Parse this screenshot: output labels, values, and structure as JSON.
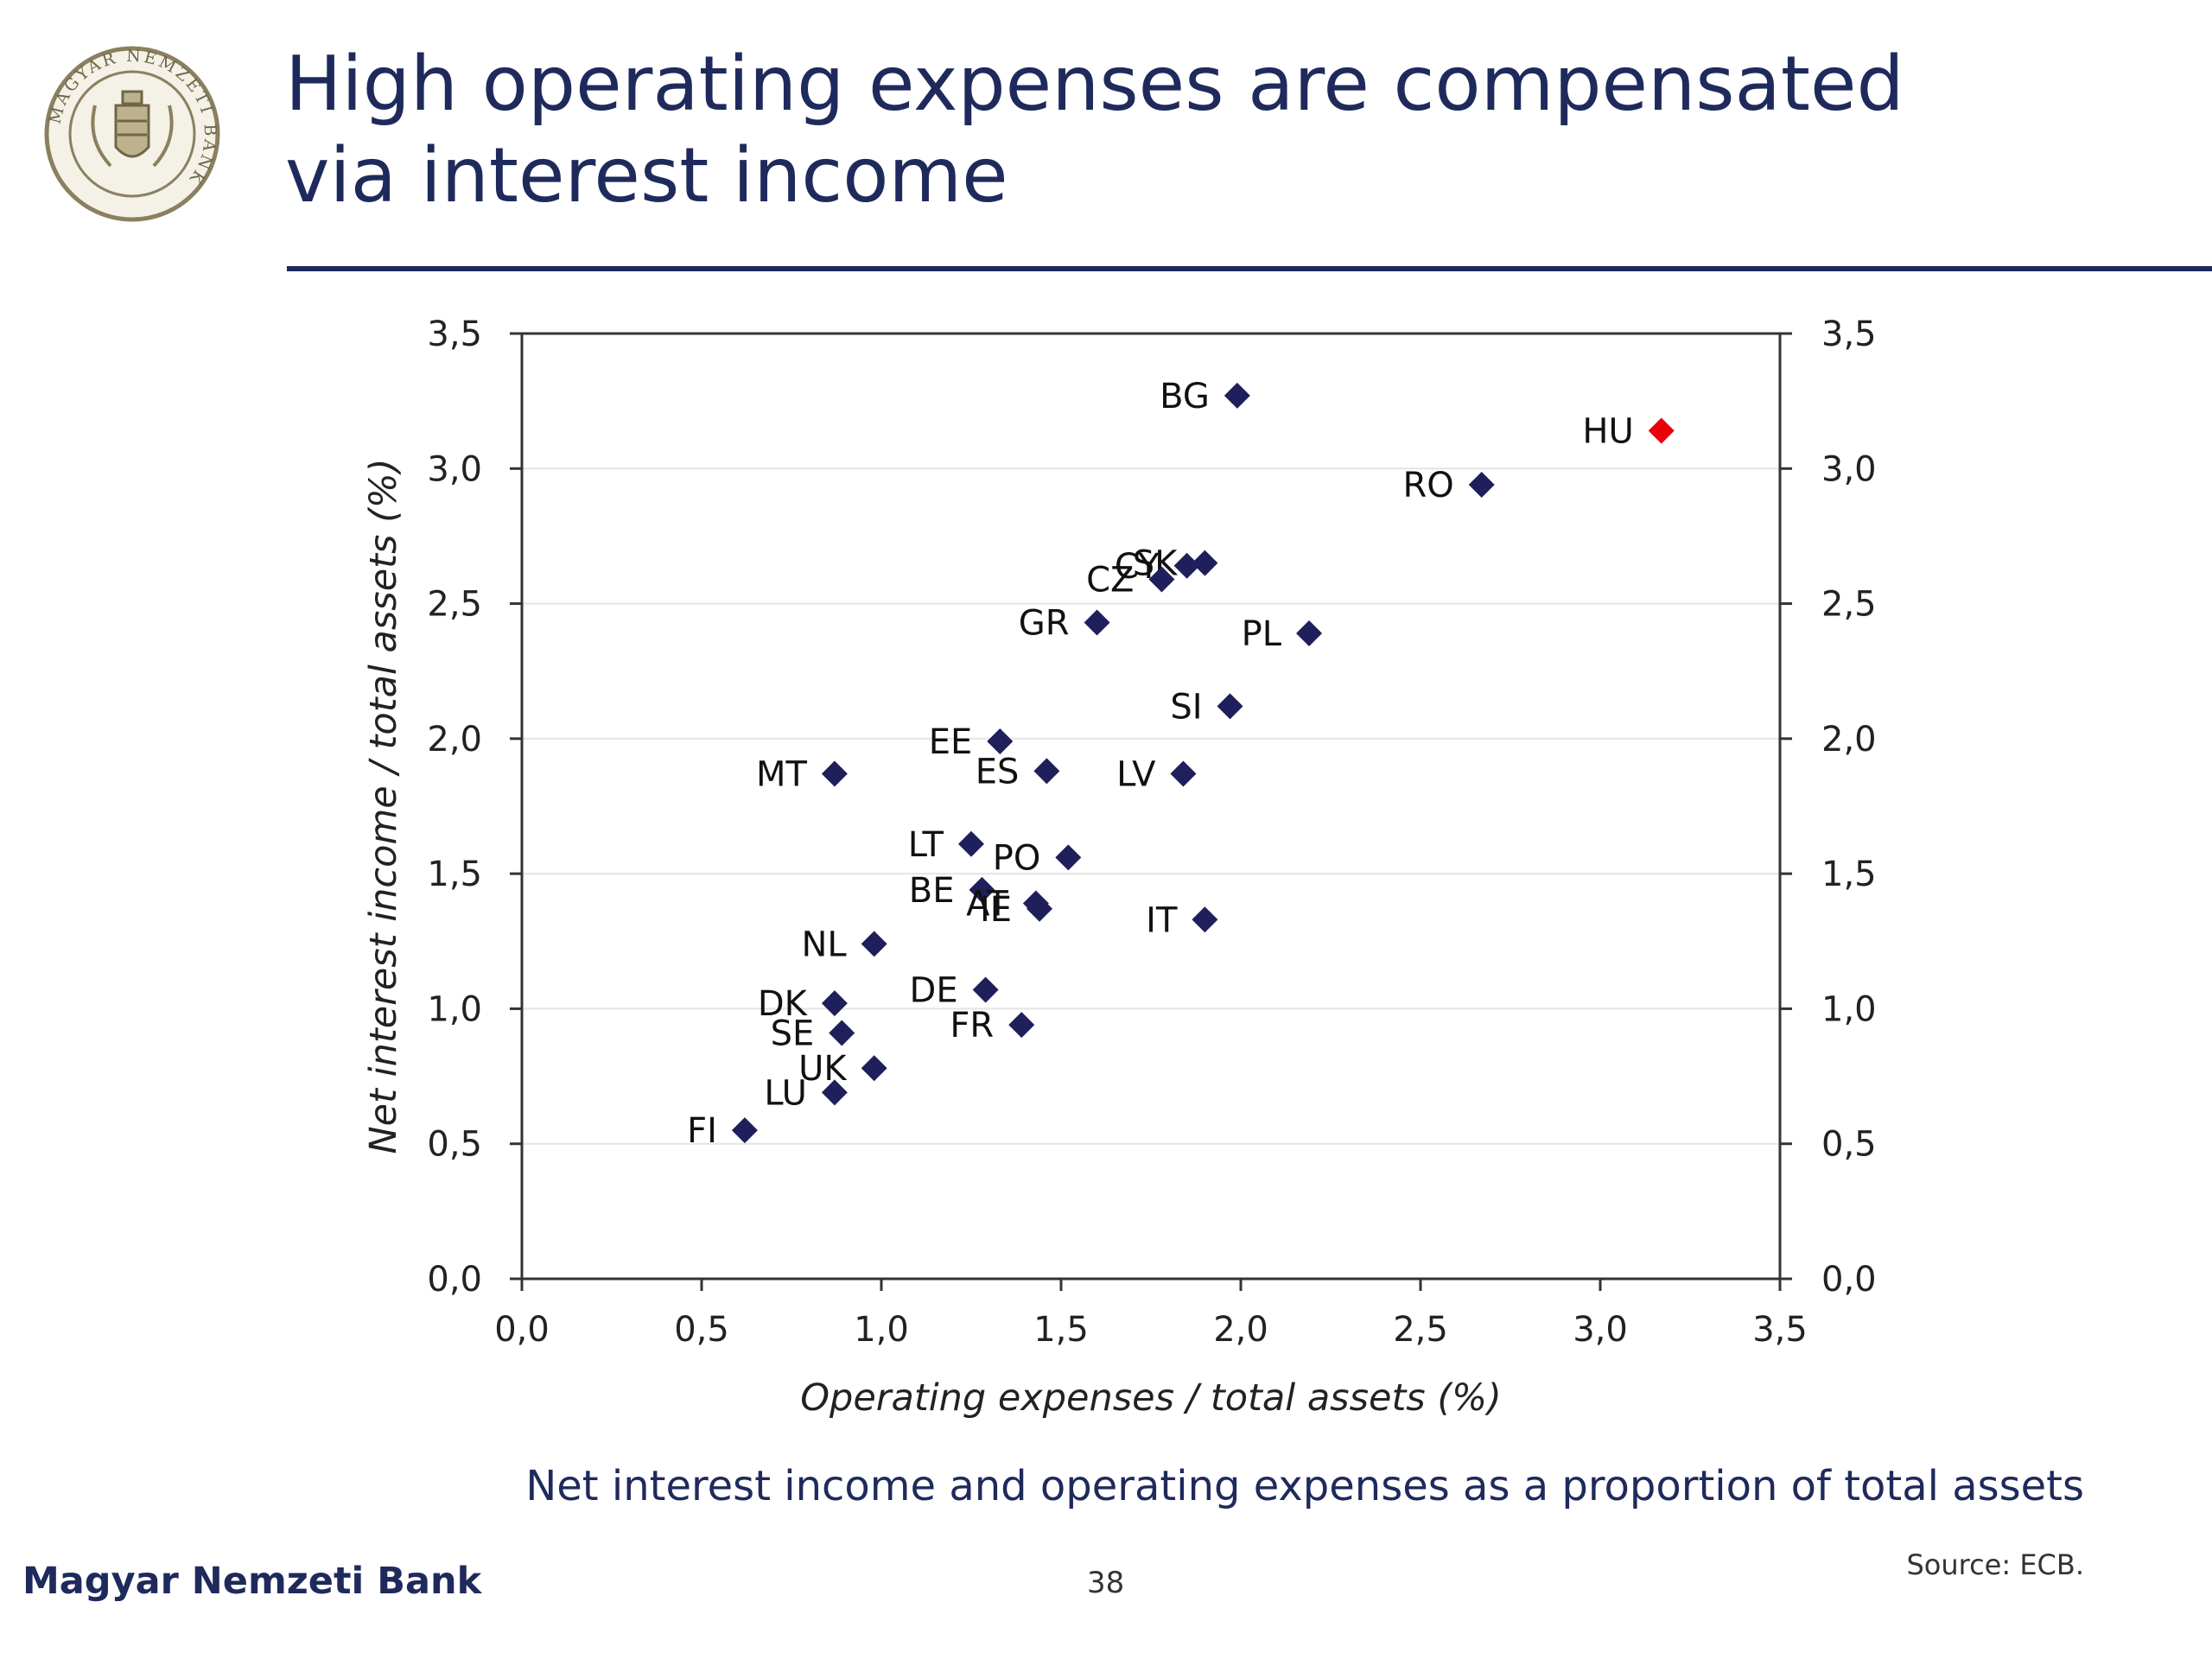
{
  "slide": {
    "title": "High operating expenses are compensated via interest income",
    "caption": "Net interest income and operating expenses as a proportion of total assets",
    "source": "Source: ECB.",
    "footer_bank": "Magyar Nemzeti Bank",
    "page_number": "38",
    "logo_text": "MAGYAR NEMZETI BANK",
    "colors": {
      "navy": "#1f2a5c",
      "marker": "#1f1f5c",
      "highlight": "#e8000b"
    }
  },
  "chart_data": {
    "type": "scatter",
    "xlabel": "Operating expenses / total assets (%)",
    "ylabel": "Net interest income / total assets (%)",
    "xlim": [
      0,
      3.5
    ],
    "ylim": [
      0,
      3.5
    ],
    "xticks": [
      "0,0",
      "0,5",
      "1,0",
      "1,5",
      "2,0",
      "2,5",
      "3,0",
      "3,5"
    ],
    "yticks": [
      "0,0",
      "0,5",
      "1,0",
      "1,5",
      "2,0",
      "2,5",
      "3,0",
      "3,5"
    ],
    "right_axis_mirrors_left": true,
    "legend": "none",
    "grid": "horizontal-faint",
    "points": [
      {
        "label": "BG",
        "x": 1.99,
        "y": 3.27
      },
      {
        "label": "HU",
        "x": 3.17,
        "y": 3.14,
        "highlight": true
      },
      {
        "label": "RO",
        "x": 2.67,
        "y": 2.94
      },
      {
        "label": "SK",
        "x": 1.9,
        "y": 2.65
      },
      {
        "label": "CZ",
        "x": 1.78,
        "y": 2.59
      },
      {
        "label": "CY",
        "x": 1.85,
        "y": 2.64
      },
      {
        "label": "GR",
        "x": 1.6,
        "y": 2.43
      },
      {
        "label": "PL",
        "x": 2.19,
        "y": 2.39
      },
      {
        "label": "SI",
        "x": 1.97,
        "y": 2.12
      },
      {
        "label": "EE",
        "x": 1.33,
        "y": 1.99
      },
      {
        "label": "ES",
        "x": 1.46,
        "y": 1.88
      },
      {
        "label": "MT",
        "x": 0.87,
        "y": 1.87
      },
      {
        "label": "LV",
        "x": 1.84,
        "y": 1.87
      },
      {
        "label": "LT",
        "x": 1.25,
        "y": 1.61
      },
      {
        "label": "PO",
        "x": 1.52,
        "y": 1.56
      },
      {
        "label": "BE",
        "x": 1.28,
        "y": 1.44
      },
      {
        "label": "AT",
        "x": 1.43,
        "y": 1.39
      },
      {
        "label": "IE",
        "x": 1.44,
        "y": 1.37
      },
      {
        "label": "IT",
        "x": 1.9,
        "y": 1.33
      },
      {
        "label": "NL",
        "x": 0.98,
        "y": 1.24
      },
      {
        "label": "DE",
        "x": 1.29,
        "y": 1.07
      },
      {
        "label": "DK",
        "x": 0.87,
        "y": 1.02
      },
      {
        "label": "FR",
        "x": 1.39,
        "y": 0.94
      },
      {
        "label": "SE",
        "x": 0.89,
        "y": 0.91
      },
      {
        "label": "UK",
        "x": 0.98,
        "y": 0.78
      },
      {
        "label": "LU",
        "x": 0.87,
        "y": 0.69
      },
      {
        "label": "FI",
        "x": 0.62,
        "y": 0.55
      }
    ]
  }
}
